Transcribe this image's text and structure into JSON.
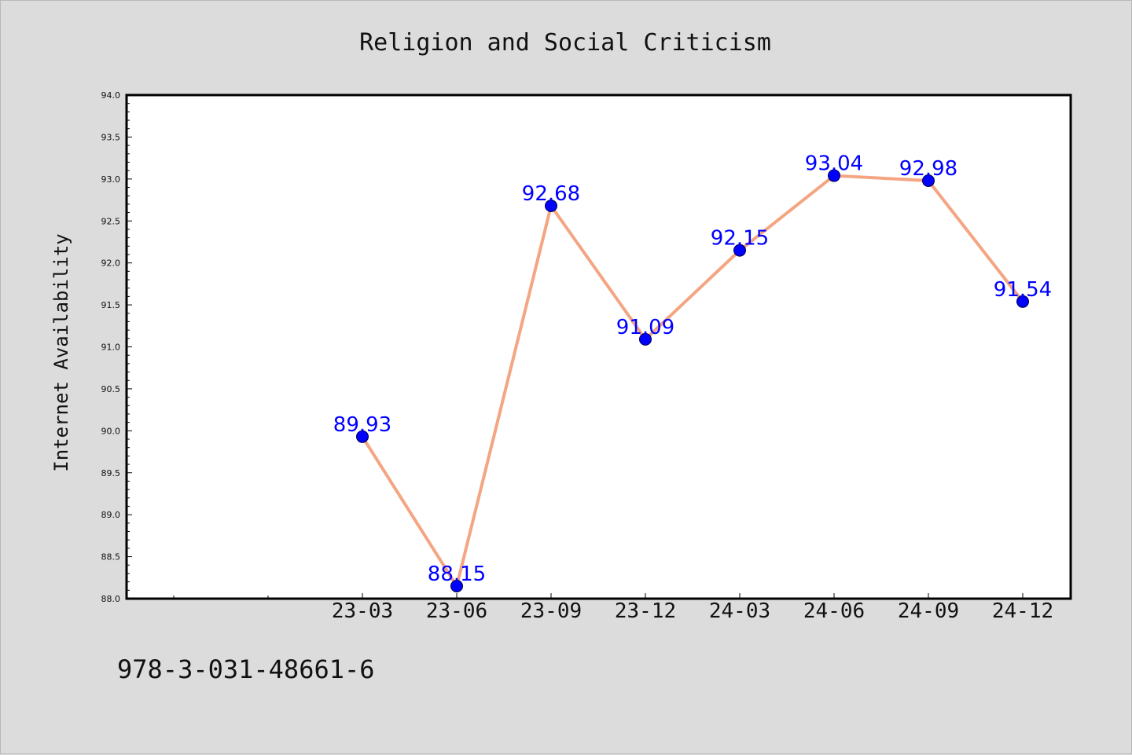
{
  "chart_data": {
    "type": "line",
    "title": "Religion and Social Criticism",
    "xlabel": "",
    "ylabel": "Internet Availability",
    "categories": [
      "23-03",
      "23-06",
      "23-09",
      "23-12",
      "24-03",
      "24-06",
      "24-09",
      "24-12"
    ],
    "values": [
      89.93,
      88.15,
      92.68,
      91.09,
      92.15,
      93.04,
      92.98,
      91.54
    ],
    "value_labels": [
      "89.93",
      "88.15",
      "92.68",
      "91.09",
      "92.15",
      "93.04",
      "92.98",
      "91.54"
    ],
    "ylim": [
      88.0,
      94.0
    ],
    "yticks": [
      "88.0",
      "88.5",
      "89.0",
      "89.5",
      "90.0",
      "90.5",
      "91.0",
      "91.5",
      "92.0",
      "92.5",
      "93.0",
      "93.5",
      "94.0"
    ],
    "grid": false,
    "legend": "none",
    "colors": {
      "line": "#f4a582",
      "marker": "#0000ff",
      "labels": "#0000ff",
      "background": "#dcdcdc",
      "plot_area": "#ffffff"
    }
  },
  "footer": {
    "code": "978-3-031-48661-6"
  }
}
